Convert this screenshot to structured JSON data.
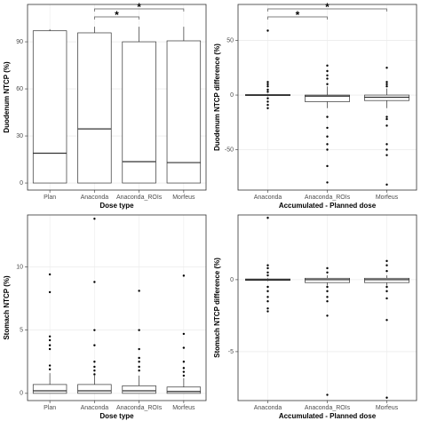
{
  "chart_data": [
    {
      "type": "box",
      "ylabel": "Duodenum NTCP (%)",
      "xlabel": "Dose type",
      "categories": [
        "Plan",
        "Anaconda",
        "Anaconda_ROIs",
        "Morfeus"
      ],
      "values": [
        {
          "min": 0,
          "q1": 0,
          "median": 19,
          "q3": 97,
          "max": 98,
          "outliers": []
        },
        {
          "min": 0,
          "q1": 0,
          "median": 34.5,
          "q3": 95.7,
          "max": 99.6,
          "outliers": []
        },
        {
          "min": 0,
          "q1": 0,
          "median": 13.6,
          "q3": 90,
          "max": 99.6,
          "outliers": []
        },
        {
          "min": 0,
          "q1": 0,
          "median": 13,
          "q3": 90.6,
          "max": 99.6,
          "outliers": []
        }
      ],
      "annotations": [
        {
          "text": "*",
          "from": 1,
          "to": 2
        },
        {
          "text": "*",
          "from": 1,
          "to": 3
        }
      ],
      "ylim": [
        -4.5,
        113.8
      ],
      "yticks": [
        0,
        30,
        60,
        90
      ],
      "grid": true
    },
    {
      "type": "box",
      "ylabel": "Duodenum NTCP difference (%)",
      "xlabel": "Accumulated - Planned dose",
      "categories": [
        "Anaconda",
        "Anaconda_ROIs",
        "Morfeus"
      ],
      "values": [
        {
          "min": -1,
          "q1": -0.5,
          "median": 0,
          "q3": 0.5,
          "max": 1,
          "outliers": [
            59,
            12,
            10,
            8,
            5,
            3,
            -3,
            -6,
            -9,
            -12
          ]
        },
        {
          "min": -12,
          "q1": -6,
          "median": -1,
          "q3": 0,
          "max": 8,
          "outliers": [
            27,
            22,
            18,
            15,
            10,
            -20,
            -30,
            -38,
            -45,
            -50,
            -65,
            -80
          ]
        },
        {
          "min": -12,
          "q1": -5,
          "median": -2,
          "q3": 0,
          "max": 6,
          "outliers": [
            25,
            12,
            10,
            8,
            -20,
            -22,
            -28,
            -45,
            -50,
            -55,
            -82
          ]
        }
      ],
      "annotations": [
        {
          "text": "*",
          "from": 0,
          "to": 1
        },
        {
          "text": "*",
          "from": 0,
          "to": 2
        }
      ],
      "ylim": [
        -87,
        83
      ],
      "yticks": [
        -50,
        0,
        50
      ],
      "grid": true
    },
    {
      "type": "box",
      "ylabel": "Stomach NTCP (%)",
      "xlabel": "Dose type",
      "categories": [
        "Plan",
        "Anaconda",
        "Anaconda_ROIs",
        "Morfeus"
      ],
      "values": [
        {
          "min": 0,
          "q1": 0,
          "median": 0.2,
          "q3": 0.7,
          "max": 1.6,
          "outliers": [
            9.4,
            8,
            4.5,
            4.2,
            3.8,
            3.5,
            2.2,
            1.9
          ]
        },
        {
          "min": 0,
          "q1": 0,
          "median": 0.2,
          "q3": 0.7,
          "max": 1.4,
          "outliers": [
            13.8,
            8.8,
            5,
            3.8,
            2.5,
            2.1,
            1.8,
            1.5
          ]
        },
        {
          "min": 0,
          "q1": 0,
          "median": 0.2,
          "q3": 0.6,
          "max": 1.4,
          "outliers": [
            8.1,
            5,
            3.5,
            2.8,
            2.5,
            2.1,
            1.8
          ]
        },
        {
          "min": 0,
          "q1": 0,
          "median": 0.15,
          "q3": 0.5,
          "max": 1.2,
          "outliers": [
            9.3,
            4.7,
            3.6,
            2.5,
            2,
            1.7,
            1.4
          ]
        }
      ],
      "ylim": [
        -0.57,
        14.1
      ],
      "yticks": [
        0,
        5,
        10
      ],
      "grid": true
    },
    {
      "type": "box",
      "ylabel": "Stomach NTCP difference (%)",
      "xlabel": "Accumulated - Planned dose",
      "categories": [
        "Anaconda",
        "Anaconda_ROIs",
        "Morfeus"
      ],
      "values": [
        {
          "min": -0.1,
          "q1": -0.05,
          "median": 0,
          "q3": 0.05,
          "max": 0.1,
          "outliers": [
            4.3,
            1,
            0.8,
            0.5,
            0.3,
            -0.5,
            -0.8,
            -1.2,
            -1.5,
            -2,
            -2.2
          ]
        },
        {
          "min": -0.4,
          "q1": -0.2,
          "median": 0,
          "q3": 0.1,
          "max": 0.3,
          "outliers": [
            0.8,
            0.5,
            -0.5,
            -0.8,
            -1.2,
            -1.5,
            -2.5,
            -8
          ]
        },
        {
          "min": -0.4,
          "q1": -0.2,
          "median": 0,
          "q3": 0.1,
          "max": 0.3,
          "outliers": [
            1.3,
            1,
            0.6,
            -0.5,
            -0.8,
            -1.3,
            -2.8,
            -8.2
          ]
        }
      ],
      "ylim": [
        -8.4,
        4.5
      ],
      "yticks": [
        -5,
        0
      ],
      "grid": true
    }
  ]
}
